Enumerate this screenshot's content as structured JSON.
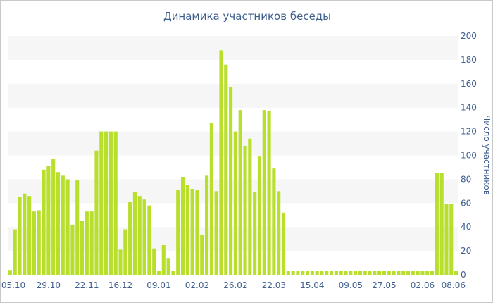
{
  "chart_data": {
    "type": "bar",
    "title": "Динамика участников беседы",
    "xlabel": "",
    "ylabel": "Число участников",
    "ylim": [
      0,
      200
    ],
    "yticks": [
      0,
      20,
      40,
      60,
      80,
      100,
      120,
      140,
      160,
      180,
      200
    ],
    "y_axis_position": "right",
    "grid": "alternating horizontal bands",
    "bar_color": "#b8df2c",
    "band_color": "#f6f6f6",
    "text_color": "#3e5e8e",
    "xtick_labels": [
      "05.10",
      "29.10",
      "22.11",
      "16.12",
      "09.01",
      "02.02",
      "26.02",
      "22.03",
      "15.04",
      "09.05",
      "27.05",
      "02.06",
      "08.06"
    ],
    "xtick_index": [
      0,
      8,
      16,
      23,
      31,
      39,
      47,
      55,
      63,
      71,
      78,
      86,
      94
    ],
    "values": [
      4,
      38,
      65,
      68,
      66,
      53,
      54,
      88,
      91,
      97,
      86,
      83,
      80,
      42,
      79,
      45,
      53,
      53,
      104,
      120,
      120,
      120,
      120,
      21,
      38,
      61,
      69,
      66,
      63,
      58,
      22,
      3,
      25,
      14,
      3,
      71,
      82,
      75,
      72,
      71,
      33,
      83,
      127,
      70,
      188,
      176,
      157,
      120,
      138,
      108,
      114,
      69,
      99,
      138,
      137,
      89,
      70,
      52,
      3,
      3,
      3,
      3,
      3,
      3,
      3,
      3,
      3,
      3,
      3,
      3,
      3,
      3,
      3,
      3,
      3,
      3,
      3,
      3,
      3,
      3,
      3,
      3,
      3,
      3,
      3,
      3,
      3,
      3,
      3,
      85,
      85,
      59,
      59,
      3
    ]
  }
}
